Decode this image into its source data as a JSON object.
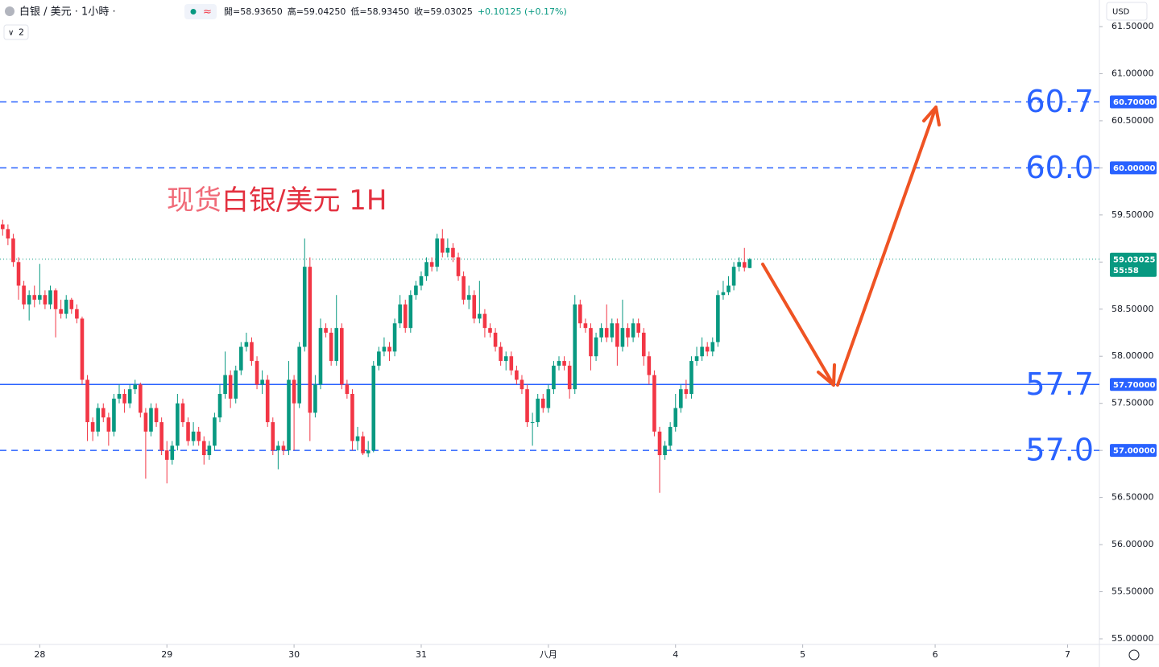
{
  "chart_data": {
    "type": "candlestick",
    "title": "白银 / 美元 · 1小時 ·",
    "indicator_count": "2",
    "currency": "USD",
    "header_values": [
      "開=58.93650",
      "高=59.04250",
      "低=58.93450",
      "收=59.03025",
      "+0.10125 (+0.17%)"
    ],
    "annotation": [
      "现货",
      "白银/美元 1H"
    ],
    "up_color": "#089981",
    "down_color": "#f23645",
    "x": [
      0,
      1,
      2,
      3,
      4,
      5,
      6,
      7,
      8,
      9,
      10,
      11,
      12,
      13,
      14,
      15,
      16,
      17,
      18,
      19,
      20,
      21,
      22,
      23,
      24,
      25,
      26,
      27,
      28,
      29,
      30,
      31,
      32,
      33,
      34,
      35,
      36,
      37,
      38,
      39,
      40,
      41,
      42,
      43,
      44,
      45,
      46,
      47,
      48,
      49,
      50,
      51,
      52,
      53,
      54,
      55,
      56,
      57,
      58,
      59,
      60,
      61,
      62,
      63,
      64,
      65,
      66,
      67,
      68,
      69,
      70,
      71,
      72,
      73,
      74,
      75,
      76,
      77,
      78,
      79,
      80,
      81,
      82,
      83,
      84,
      85,
      86,
      87,
      88,
      89,
      90,
      91,
      92,
      93,
      94,
      95,
      96,
      97,
      98,
      99,
      100,
      101,
      102,
      103,
      104,
      105,
      106,
      107,
      108,
      109,
      110,
      111,
      112,
      113,
      114,
      115,
      116,
      117,
      118,
      119,
      120,
      121,
      122,
      123,
      124,
      125,
      126,
      127,
      128,
      129,
      130,
      131,
      132,
      133,
      134,
      135,
      136,
      137,
      138,
      139,
      140,
      141
    ],
    "open": [
      59.4,
      59.35,
      59.25,
      59.0,
      58.75,
      58.55,
      58.65,
      58.6,
      58.65,
      58.55,
      58.7,
      58.5,
      58.45,
      58.6,
      58.5,
      58.4,
      57.75,
      57.3,
      57.2,
      57.45,
      57.35,
      57.2,
      57.55,
      57.6,
      57.5,
      57.65,
      57.7,
      57.4,
      57.2,
      57.45,
      57.3,
      57.0,
      56.9,
      57.05,
      57.5,
      57.3,
      57.1,
      57.2,
      57.1,
      56.95,
      57.05,
      57.35,
      57.6,
      57.8,
      57.55,
      57.85,
      58.1,
      58.15,
      57.95,
      57.7,
      57.75,
      57.3,
      57.0,
      57.05,
      57.0,
      57.75,
      57.5,
      58.1,
      58.95,
      57.4,
      57.7,
      58.3,
      58.25,
      57.95,
      58.3,
      57.7,
      57.6,
      57.1,
      57.15,
      56.97,
      57.0,
      57.9,
      58.05,
      58.1,
      58.05,
      58.35,
      58.55,
      58.3,
      58.65,
      58.75,
      58.85,
      59.0,
      58.95,
      59.25,
      59.1,
      59.15,
      59.05,
      58.85,
      58.6,
      58.65,
      58.4,
      58.45,
      58.3,
      58.25,
      58.1,
      57.95,
      58.0,
      57.85,
      57.75,
      57.65,
      57.3,
      57.3,
      57.55,
      57.45,
      57.65,
      57.9,
      57.95,
      57.9,
      57.65,
      58.55,
      58.35,
      58.3,
      58.0,
      58.2,
      58.3,
      58.2,
      58.35,
      58.1,
      58.3,
      58.2,
      58.35,
      58.25,
      58.0,
      57.8,
      57.2,
      56.95,
      57.05,
      57.25,
      57.45,
      57.65,
      57.6,
      57.95,
      58.0,
      58.1,
      58.05,
      58.15,
      58.65,
      58.68,
      58.75,
      58.95,
      59.0,
      58.9365
    ],
    "high": [
      59.45,
      59.4,
      59.3,
      59.05,
      58.8,
      58.7,
      58.75,
      58.98,
      58.7,
      58.75,
      58.72,
      58.6,
      58.65,
      58.62,
      58.55,
      58.42,
      57.8,
      57.35,
      57.5,
      57.5,
      57.4,
      57.6,
      57.7,
      57.65,
      57.7,
      57.75,
      57.72,
      57.45,
      57.5,
      57.5,
      57.35,
      57.1,
      57.1,
      57.6,
      57.55,
      57.35,
      57.3,
      57.25,
      57.15,
      57.1,
      57.4,
      57.7,
      58.05,
      57.85,
      57.9,
      58.15,
      58.25,
      58.2,
      58.0,
      57.85,
      57.8,
      57.35,
      57.1,
      57.1,
      57.95,
      57.8,
      58.15,
      59.25,
      59.05,
      57.8,
      58.4,
      58.35,
      58.3,
      58.65,
      58.35,
      57.75,
      57.65,
      57.25,
      57.2,
      57.1,
      57.95,
      58.1,
      58.2,
      58.15,
      58.4,
      58.65,
      58.6,
      58.7,
      58.8,
      58.9,
      59.05,
      59.05,
      59.3,
      59.35,
      59.25,
      59.2,
      59.1,
      58.9,
      58.75,
      58.7,
      58.8,
      58.5,
      58.35,
      58.3,
      58.15,
      58.05,
      58.05,
      57.9,
      57.8,
      57.7,
      57.4,
      57.6,
      57.6,
      57.7,
      57.95,
      58.0,
      58.0,
      57.95,
      58.65,
      58.6,
      58.4,
      58.35,
      58.25,
      58.35,
      58.55,
      58.4,
      58.4,
      58.6,
      58.35,
      58.4,
      58.4,
      58.3,
      58.05,
      57.85,
      57.25,
      57.1,
      57.3,
      57.6,
      57.7,
      57.75,
      58.0,
      58.1,
      58.2,
      58.15,
      58.2,
      58.7,
      58.8,
      58.85,
      59.0,
      59.05,
      59.15,
      59.0425
    ],
    "low": [
      59.28,
      59.18,
      58.95,
      58.6,
      58.5,
      58.38,
      58.52,
      58.55,
      58.5,
      58.5,
      58.2,
      58.4,
      58.4,
      58.45,
      58.35,
      57.7,
      57.1,
      57.1,
      57.15,
      57.3,
      57.05,
      57.15,
      57.5,
      57.4,
      57.45,
      57.6,
      57.35,
      56.7,
      57.15,
      57.25,
      56.95,
      56.65,
      56.85,
      57.0,
      57.25,
      57.05,
      57.05,
      57.05,
      56.85,
      56.9,
      57.0,
      57.3,
      57.55,
      57.45,
      57.5,
      57.8,
      58.05,
      57.9,
      57.65,
      57.6,
      57.25,
      56.95,
      56.8,
      56.95,
      56.95,
      57.0,
      57.45,
      58.05,
      57.1,
      57.35,
      57.65,
      58.2,
      57.9,
      57.9,
      57.65,
      57.55,
      57.0,
      57.0,
      56.95,
      56.93,
      56.98,
      57.85,
      58.0,
      57.95,
      58.0,
      58.3,
      58.25,
      58.25,
      58.6,
      58.7,
      58.8,
      58.9,
      58.9,
      59.05,
      59.05,
      59.0,
      58.8,
      58.55,
      58.5,
      58.35,
      58.35,
      58.2,
      58.2,
      58.05,
      57.9,
      57.85,
      57.8,
      57.7,
      57.6,
      57.25,
      57.05,
      57.25,
      57.4,
      57.4,
      57.6,
      57.85,
      57.85,
      57.55,
      57.6,
      58.3,
      58.25,
      57.85,
      57.95,
      58.15,
      58.15,
      58.15,
      57.9,
      58.05,
      58.1,
      58.15,
      58.2,
      57.9,
      57.7,
      57.15,
      56.55,
      56.9,
      57.0,
      57.2,
      57.4,
      57.55,
      57.55,
      57.9,
      57.95,
      58.0,
      58.0,
      58.1,
      58.6,
      58.65,
      58.7,
      58.9,
      58.9,
      58.9345
    ],
    "close": [
      59.35,
      59.25,
      59.0,
      58.75,
      58.55,
      58.65,
      58.6,
      58.65,
      58.55,
      58.7,
      58.5,
      58.45,
      58.6,
      58.5,
      58.4,
      57.75,
      57.3,
      57.2,
      57.45,
      57.35,
      57.2,
      57.55,
      57.6,
      57.5,
      57.65,
      57.7,
      57.4,
      57.2,
      57.45,
      57.3,
      57.0,
      56.9,
      57.05,
      57.5,
      57.3,
      57.1,
      57.2,
      57.1,
      56.95,
      57.05,
      57.35,
      57.6,
      57.8,
      57.55,
      57.85,
      58.1,
      58.15,
      57.95,
      57.7,
      57.75,
      57.3,
      57.0,
      57.05,
      57.0,
      57.75,
      57.5,
      58.1,
      58.95,
      57.4,
      57.7,
      58.3,
      58.25,
      57.95,
      58.3,
      57.7,
      57.6,
      57.1,
      57.15,
      56.97,
      57.0,
      57.9,
      58.05,
      58.1,
      58.05,
      58.35,
      58.55,
      58.3,
      58.65,
      58.75,
      58.85,
      59.0,
      58.95,
      59.25,
      59.1,
      59.15,
      59.05,
      58.85,
      58.6,
      58.65,
      58.4,
      58.45,
      58.3,
      58.25,
      58.1,
      57.95,
      58.0,
      57.85,
      57.75,
      57.65,
      57.3,
      57.3,
      57.55,
      57.45,
      57.65,
      57.9,
      57.95,
      57.9,
      57.65,
      58.55,
      58.35,
      58.3,
      58.0,
      58.2,
      58.3,
      58.2,
      58.35,
      58.1,
      58.3,
      58.2,
      58.35,
      58.25,
      58.0,
      57.8,
      57.2,
      56.95,
      57.05,
      57.25,
      57.45,
      57.65,
      57.6,
      57.95,
      58.0,
      58.1,
      58.05,
      58.15,
      58.65,
      58.68,
      58.75,
      58.95,
      59.0,
      58.94,
      59.03025
    ],
    "last_price": {
      "value": 59.03025,
      "label": "59.03025",
      "countdown": "55:58"
    },
    "levels": [
      {
        "value": 60.7,
        "style": "dashed",
        "label": "60.7",
        "tag": "60.70000"
      },
      {
        "value": 60.0,
        "style": "dashed",
        "label": "60.0",
        "tag": "60.00000"
      },
      {
        "value": 57.7,
        "style": "solid",
        "label": "57.7",
        "tag": "57.70000"
      },
      {
        "value": 57.0,
        "style": "dashed",
        "label": "57.0",
        "tag": "57.00000"
      }
    ],
    "level_color": "#2962ff",
    "xlim": [
      -0.5,
      207
    ],
    "xticks": [
      {
        "value": 7,
        "label": "28"
      },
      {
        "value": 31,
        "label": "29"
      },
      {
        "value": 55,
        "label": "30"
      },
      {
        "value": 79,
        "label": "31"
      },
      {
        "value": 103,
        "label": "八月"
      },
      {
        "value": 127,
        "label": "4"
      },
      {
        "value": 151,
        "label": "5"
      },
      {
        "value": 176,
        "label": "6"
      },
      {
        "value": 201,
        "label": "7"
      }
    ],
    "ylim": [
      55,
      61.5
    ],
    "yticks": [
      {
        "value": 61.5,
        "label": "61.50000"
      },
      {
        "value": 61,
        "label": "61.00000"
      },
      {
        "value": 60.5,
        "label": "60.50000"
      },
      {
        "value": 60,
        "label": "60.00000"
      },
      {
        "value": 59.5,
        "label": "59.50000"
      },
      {
        "value": 59,
        "label": "59.00000"
      },
      {
        "value": 58.5,
        "label": "58.50000"
      },
      {
        "value": 58,
        "label": "58.00000"
      },
      {
        "value": 57.5,
        "label": "57.50000"
      },
      {
        "value": 57,
        "label": "57.00000"
      },
      {
        "value": 56.5,
        "label": "56.50000"
      },
      {
        "value": 56,
        "label": "56.00000"
      },
      {
        "value": 55.5,
        "label": "55.50000"
      },
      {
        "value": 55,
        "label": "55.00000"
      }
    ]
  }
}
